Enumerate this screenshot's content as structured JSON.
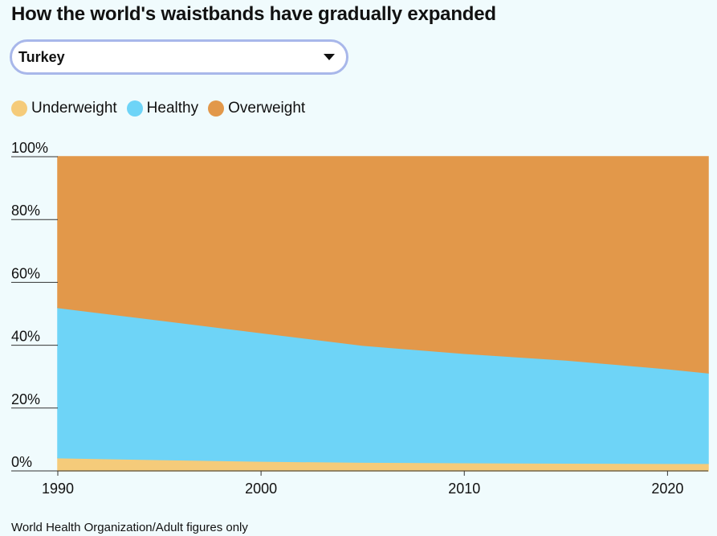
{
  "title": "How the world's waistbands have gradually expanded",
  "dropdown": {
    "selected": "Turkey"
  },
  "legend": [
    {
      "label": "Underweight",
      "color": "#f5cb7a"
    },
    {
      "label": "Healthy",
      "color": "#6ed4f7"
    },
    {
      "label": "Overweight",
      "color": "#e2984a"
    }
  ],
  "source": "World Health Organization/Adult figures only",
  "chart_data": {
    "type": "area",
    "stacked": true,
    "x": [
      1990,
      1995,
      2000,
      2005,
      2010,
      2015,
      2020,
      2022
    ],
    "series": [
      {
        "name": "Underweight",
        "color": "#f5cb7a",
        "values": [
          4.2,
          3.6,
          3.1,
          2.8,
          2.6,
          2.5,
          2.4,
          2.4
        ]
      },
      {
        "name": "Healthy",
        "color": "#6ed4f7",
        "values": [
          47.8,
          44.4,
          40.9,
          37.2,
          34.8,
          32.8,
          30.1,
          28.8
        ]
      },
      {
        "name": "Overweight",
        "color": "#e2984a",
        "values": [
          48.0,
          52.0,
          56.0,
          60.0,
          62.6,
          64.7,
          67.5,
          68.8
        ]
      }
    ],
    "ylim": [
      0,
      100
    ],
    "yticks": [
      {
        "value": 0,
        "label": "0%"
      },
      {
        "value": 20,
        "label": "20%"
      },
      {
        "value": 40,
        "label": "40%"
      },
      {
        "value": 60,
        "label": "60%"
      },
      {
        "value": 80,
        "label": "80%"
      },
      {
        "value": 100,
        "label": "100%"
      }
    ],
    "xlim": [
      1990,
      2022
    ],
    "xticks": [
      {
        "value": 1990,
        "label": "1990"
      },
      {
        "value": 2000,
        "label": "2000"
      },
      {
        "value": 2010,
        "label": "2010"
      },
      {
        "value": 2020,
        "label": "2020"
      }
    ]
  }
}
